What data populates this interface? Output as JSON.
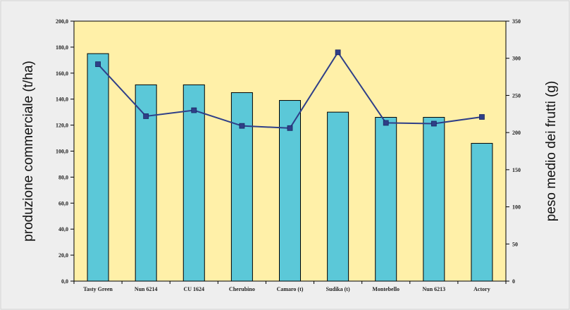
{
  "chart_data": {
    "type": "bar",
    "categories": [
      "Tasty Green",
      "Nun 6214",
      "CU 1624",
      "Cherubino",
      "Camaro (t)",
      "Sudika (t)",
      "Montebello",
      "Nun 6213",
      "Actory"
    ],
    "series": [
      {
        "type": "bar",
        "axis": "left",
        "values": [
          175,
          151,
          151,
          145,
          139,
          130,
          126,
          126,
          106
        ],
        "color": "#5bc8d8"
      },
      {
        "type": "line",
        "axis": "right",
        "values": [
          292,
          222,
          230,
          209,
          206,
          308,
          213,
          212,
          221
        ],
        "color": "#2f3f88"
      }
    ],
    "ylabel": "produzione commerciale (t/ha)",
    "y2label": "peso medio dei frutti (g)",
    "ylim": [
      0,
      200
    ],
    "y2lim": [
      0,
      350
    ],
    "yticks": [
      "0,0",
      "20,0",
      "40,0",
      "60,0",
      "80,0",
      "100,0",
      "120,0",
      "140,0",
      "160,0",
      "180,0",
      "200,0"
    ],
    "y2ticks": [
      "0",
      "50",
      "100",
      "150",
      "200",
      "250",
      "300",
      "350"
    ],
    "plot_background": "#fff0a8",
    "grid": false,
    "legend": "none"
  }
}
